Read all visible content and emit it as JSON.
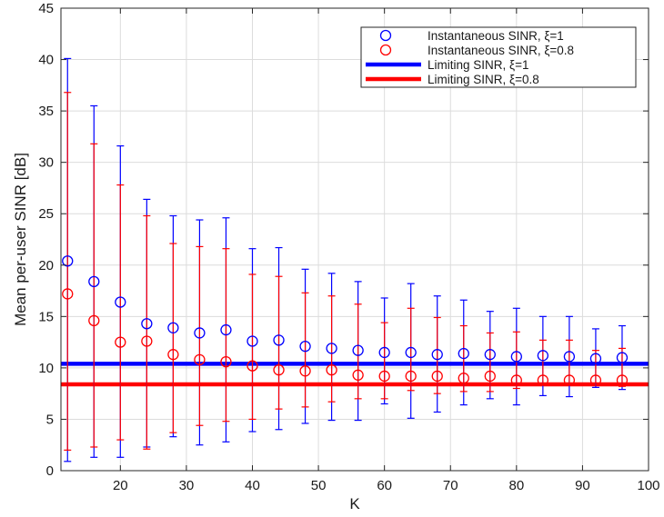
{
  "chart_data": {
    "type": "scatter",
    "title": "",
    "xlabel": "K",
    "ylabel": "Mean per-user SINR [dB]",
    "xlim": [
      11,
      100
    ],
    "ylim": [
      0,
      45
    ],
    "xticks": [
      20,
      30,
      40,
      50,
      60,
      70,
      80,
      90,
      100
    ],
    "yticks": [
      0,
      5,
      10,
      15,
      20,
      25,
      30,
      35,
      40,
      45
    ],
    "grid": true,
    "legend_position": "top-right",
    "colors": {
      "blue": "#0000ff",
      "red": "#ff0000",
      "grid": "#dcdcdc",
      "axis": "#262626"
    },
    "series": [
      {
        "name": "Instantaneous SINR, ξ=1",
        "kind": "errorbar-markers",
        "color": "#0000ff",
        "x": [
          12,
          16,
          20,
          24,
          28,
          32,
          36,
          40,
          44,
          48,
          52,
          56,
          60,
          64,
          68,
          72,
          76,
          80,
          84,
          88,
          92,
          96
        ],
        "y": [
          20.4,
          18.4,
          16.4,
          14.3,
          13.9,
          13.4,
          13.7,
          12.6,
          12.7,
          12.1,
          11.9,
          11.7,
          11.5,
          11.5,
          11.3,
          11.4,
          11.3,
          11.1,
          11.2,
          11.1,
          10.9,
          11.0
        ],
        "lower": [
          0.9,
          1.3,
          1.3,
          2.3,
          3.3,
          2.5,
          2.8,
          3.8,
          4.0,
          4.6,
          4.9,
          4.9,
          6.5,
          5.1,
          5.7,
          6.4,
          7.0,
          6.4,
          7.3,
          7.2,
          8.1,
          7.9
        ],
        "upper": [
          40.1,
          35.5,
          31.6,
          26.4,
          24.8,
          24.4,
          24.6,
          21.6,
          21.7,
          19.6,
          19.2,
          18.4,
          16.8,
          18.2,
          17.0,
          16.6,
          15.5,
          15.8,
          15.0,
          15.0,
          13.8,
          14.1
        ]
      },
      {
        "name": "Instantaneous SINR, ξ=0.8",
        "kind": "errorbar-markers",
        "color": "#ff0000",
        "x": [
          12,
          16,
          20,
          24,
          28,
          32,
          36,
          40,
          44,
          48,
          52,
          56,
          60,
          64,
          68,
          72,
          76,
          80,
          84,
          88,
          92,
          96
        ],
        "y": [
          17.2,
          14.6,
          12.5,
          12.6,
          11.3,
          10.8,
          10.6,
          10.2,
          9.8,
          9.7,
          9.8,
          9.3,
          9.2,
          9.2,
          9.2,
          9.0,
          9.2,
          8.8,
          8.8,
          8.8,
          8.8,
          8.8
        ],
        "lower": [
          2.0,
          2.3,
          3.0,
          2.1,
          3.7,
          4.4,
          4.8,
          5.0,
          6.0,
          6.2,
          6.7,
          7.0,
          7.0,
          7.8,
          7.5,
          7.7,
          7.7,
          8.0,
          8.4,
          8.4,
          8.5,
          8.2
        ],
        "upper": [
          36.8,
          31.8,
          27.8,
          24.8,
          22.1,
          21.8,
          21.6,
          19.1,
          18.9,
          17.3,
          17.0,
          16.2,
          14.4,
          15.8,
          14.9,
          14.1,
          13.4,
          13.5,
          12.7,
          12.7,
          11.7,
          11.9
        ]
      },
      {
        "name": "Limiting SINR, ξ=1",
        "kind": "hline",
        "color": "#0000ff",
        "value": 10.4
      },
      {
        "name": "Limiting SINR, ξ=0.8",
        "kind": "hline",
        "color": "#ff0000",
        "value": 8.4
      }
    ]
  }
}
